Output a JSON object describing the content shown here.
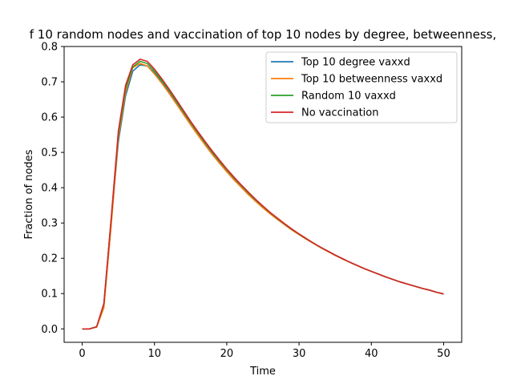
{
  "chart_data": {
    "type": "line",
    "title": "f 10 random nodes and vaccination of top 10 nodes by degree, betweenness,",
    "xlabel": "Time",
    "ylabel": "Fraction of nodes",
    "xlim": [
      -2.5,
      52.5
    ],
    "ylim": [
      -0.038,
      0.8
    ],
    "xticks": [
      0,
      10,
      20,
      30,
      40,
      50
    ],
    "yticks": [
      0.0,
      0.1,
      0.2,
      0.3,
      0.4,
      0.5,
      0.6,
      0.7,
      0.8
    ],
    "xtick_labels": [
      "0",
      "10",
      "20",
      "30",
      "40",
      "50"
    ],
    "ytick_labels": [
      "0.0",
      "0.1",
      "0.2",
      "0.3",
      "0.4",
      "0.5",
      "0.6",
      "0.7",
      "0.8"
    ],
    "grid": false,
    "legend_position": "top-right",
    "x": [
      0,
      1,
      2,
      3,
      4,
      5,
      6,
      7,
      8,
      9,
      10,
      11,
      12,
      13,
      14,
      15,
      16,
      17,
      18,
      19,
      20,
      21,
      22,
      23,
      24,
      25,
      26,
      27,
      28,
      29,
      30,
      31,
      32,
      33,
      34,
      35,
      36,
      37,
      38,
      39,
      40,
      41,
      42,
      43,
      44,
      45,
      46,
      47,
      48,
      49,
      50
    ],
    "series": [
      {
        "name": "Top 10 degree vaxxd",
        "color": "#1f77b4",
        "values": [
          0.0,
          0.0,
          0.006,
          0.07,
          0.3,
          0.53,
          0.66,
          0.73,
          0.748,
          0.745,
          0.725,
          0.7,
          0.672,
          0.642,
          0.612,
          0.582,
          0.553,
          0.525,
          0.498,
          0.472,
          0.448,
          0.425,
          0.403,
          0.382,
          0.363,
          0.345,
          0.328,
          0.311,
          0.296,
          0.281,
          0.268,
          0.255,
          0.243,
          0.231,
          0.22,
          0.209,
          0.199,
          0.189,
          0.18,
          0.171,
          0.163,
          0.155,
          0.147,
          0.14,
          0.133,
          0.127,
          0.121,
          0.115,
          0.11,
          0.104,
          0.099
        ]
      },
      {
        "name": "Top 10 betweenness vaxxd",
        "color": "#ff7f0e",
        "values": [
          0.0,
          0.0,
          0.005,
          0.06,
          0.29,
          0.54,
          0.67,
          0.74,
          0.752,
          0.745,
          0.722,
          0.696,
          0.668,
          0.638,
          0.608,
          0.578,
          0.549,
          0.521,
          0.494,
          0.469,
          0.445,
          0.422,
          0.401,
          0.38,
          0.361,
          0.343,
          0.326,
          0.31,
          0.295,
          0.28,
          0.267,
          0.254,
          0.242,
          0.23,
          0.219,
          0.208,
          0.198,
          0.189,
          0.18,
          0.171,
          0.163,
          0.155,
          0.147,
          0.14,
          0.133,
          0.127,
          0.121,
          0.115,
          0.11,
          0.104,
          0.099
        ]
      },
      {
        "name": "Random 10 vaxxd",
        "color": "#2ca02c",
        "values": [
          0.0,
          0.0,
          0.006,
          0.07,
          0.31,
          0.55,
          0.68,
          0.742,
          0.758,
          0.752,
          0.73,
          0.704,
          0.676,
          0.646,
          0.615,
          0.585,
          0.556,
          0.528,
          0.501,
          0.475,
          0.451,
          0.428,
          0.406,
          0.385,
          0.365,
          0.347,
          0.329,
          0.313,
          0.297,
          0.282,
          0.268,
          0.255,
          0.243,
          0.231,
          0.22,
          0.209,
          0.199,
          0.189,
          0.18,
          0.171,
          0.163,
          0.155,
          0.147,
          0.14,
          0.133,
          0.127,
          0.121,
          0.115,
          0.11,
          0.104,
          0.099
        ]
      },
      {
        "name": "No vaccination",
        "color": "#d62728",
        "values": [
          0.0,
          0.0,
          0.006,
          0.072,
          0.31,
          0.56,
          0.69,
          0.748,
          0.764,
          0.758,
          0.736,
          0.709,
          0.68,
          0.65,
          0.619,
          0.588,
          0.559,
          0.531,
          0.504,
          0.478,
          0.453,
          0.43,
          0.408,
          0.387,
          0.367,
          0.348,
          0.33,
          0.314,
          0.298,
          0.283,
          0.269,
          0.256,
          0.243,
          0.231,
          0.22,
          0.209,
          0.199,
          0.189,
          0.18,
          0.171,
          0.163,
          0.155,
          0.147,
          0.14,
          0.133,
          0.127,
          0.121,
          0.115,
          0.11,
          0.104,
          0.099
        ]
      }
    ]
  }
}
